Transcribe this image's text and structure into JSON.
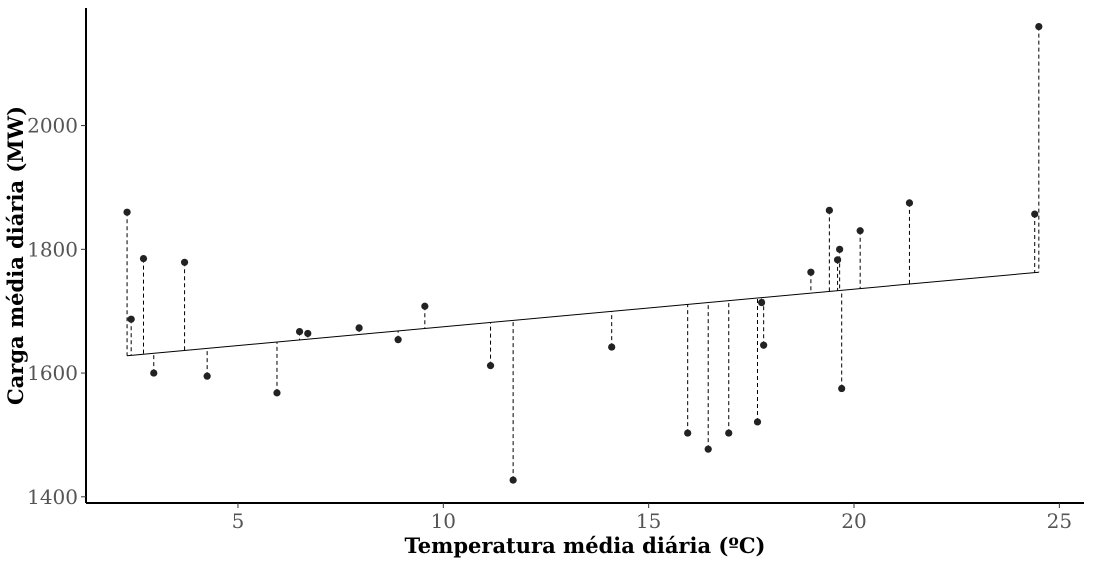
{
  "chart_data": {
    "type": "scatter",
    "title": "",
    "xlabel": "Temperatura média diária (ºC)",
    "ylabel": "Carga média diária (MW)",
    "xlim": [
      1.3,
      25.6
    ],
    "ylim": [
      1390,
      2190
    ],
    "x_ticks": [
      5,
      10,
      15,
      20,
      25
    ],
    "y_ticks": [
      1400,
      1600,
      1800,
      2000
    ],
    "grid": false,
    "legend": "none",
    "fit_line": {
      "x": [
        2.3,
        24.5
      ],
      "y": [
        1628,
        1763
      ]
    },
    "residual_lines": "dashed",
    "colors": {
      "points": "#222222",
      "axis": "#000000",
      "tick_labels": "#555555"
    },
    "points": [
      {
        "x": 2.3,
        "y": 1860
      },
      {
        "x": 2.4,
        "y": 1687
      },
      {
        "x": 2.7,
        "y": 1785
      },
      {
        "x": 2.95,
        "y": 1600
      },
      {
        "x": 3.7,
        "y": 1779
      },
      {
        "x": 4.25,
        "y": 1595
      },
      {
        "x": 5.95,
        "y": 1568
      },
      {
        "x": 6.5,
        "y": 1667
      },
      {
        "x": 6.7,
        "y": 1664
      },
      {
        "x": 7.95,
        "y": 1673
      },
      {
        "x": 8.9,
        "y": 1654
      },
      {
        "x": 9.55,
        "y": 1708
      },
      {
        "x": 11.15,
        "y": 1612
      },
      {
        "x": 11.7,
        "y": 1427
      },
      {
        "x": 14.1,
        "y": 1642
      },
      {
        "x": 15.95,
        "y": 1503
      },
      {
        "x": 16.45,
        "y": 1477
      },
      {
        "x": 16.95,
        "y": 1503
      },
      {
        "x": 17.65,
        "y": 1521
      },
      {
        "x": 17.75,
        "y": 1714
      },
      {
        "x": 17.8,
        "y": 1645
      },
      {
        "x": 18.95,
        "y": 1763
      },
      {
        "x": 19.4,
        "y": 1863
      },
      {
        "x": 19.6,
        "y": 1783
      },
      {
        "x": 19.65,
        "y": 1800
      },
      {
        "x": 19.7,
        "y": 1575
      },
      {
        "x": 20.15,
        "y": 1830
      },
      {
        "x": 21.35,
        "y": 1875
      },
      {
        "x": 24.4,
        "y": 1857
      },
      {
        "x": 24.5,
        "y": 2160
      }
    ]
  }
}
